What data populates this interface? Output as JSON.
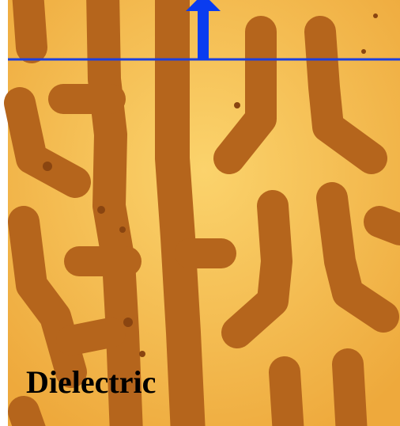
{
  "label": "Dielectric"
}
